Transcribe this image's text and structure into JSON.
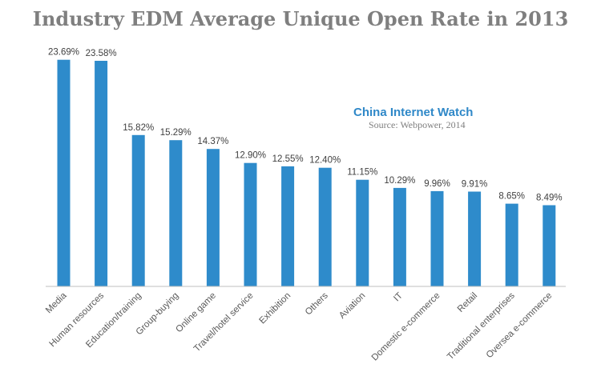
{
  "chart_data": {
    "type": "bar",
    "title": "Industry EDM Average Unique Open Rate in 2013",
    "categories": [
      "Media",
      "Human resources",
      "Education/training",
      "Group-buying",
      "Online game",
      "Travel/hotel service",
      "Exhibition",
      "Others",
      "Aviation",
      "IT",
      "Domestic e-commerce",
      "Retail",
      "Traditional enterprises",
      "Oversea e-commerce"
    ],
    "values": [
      23.69,
      23.58,
      15.82,
      15.29,
      14.37,
      12.9,
      12.55,
      12.4,
      11.15,
      10.29,
      9.96,
      9.91,
      8.65,
      8.49
    ],
    "value_labels": [
      "23.69%",
      "23.58%",
      "15.82%",
      "15.29%",
      "14.37%",
      "12.90%",
      "12.55%",
      "12.40%",
      "11.15%",
      "10.29%",
      "9.96%",
      "9.91%",
      "8.65%",
      "8.49%"
    ],
    "unit": "%",
    "ylim": [
      0,
      24
    ],
    "xlabel": "",
    "ylabel": "",
    "grid": false,
    "legend": "none",
    "bar_color": "#2e8bcb"
  },
  "watermark": {
    "brand": "China Internet  Watch",
    "source": "Source: Webpower, 2014",
    "brand_color": "#2f88c8"
  },
  "colors": {
    "axis": "#bfbfbf",
    "title": "#7f7f7f"
  }
}
